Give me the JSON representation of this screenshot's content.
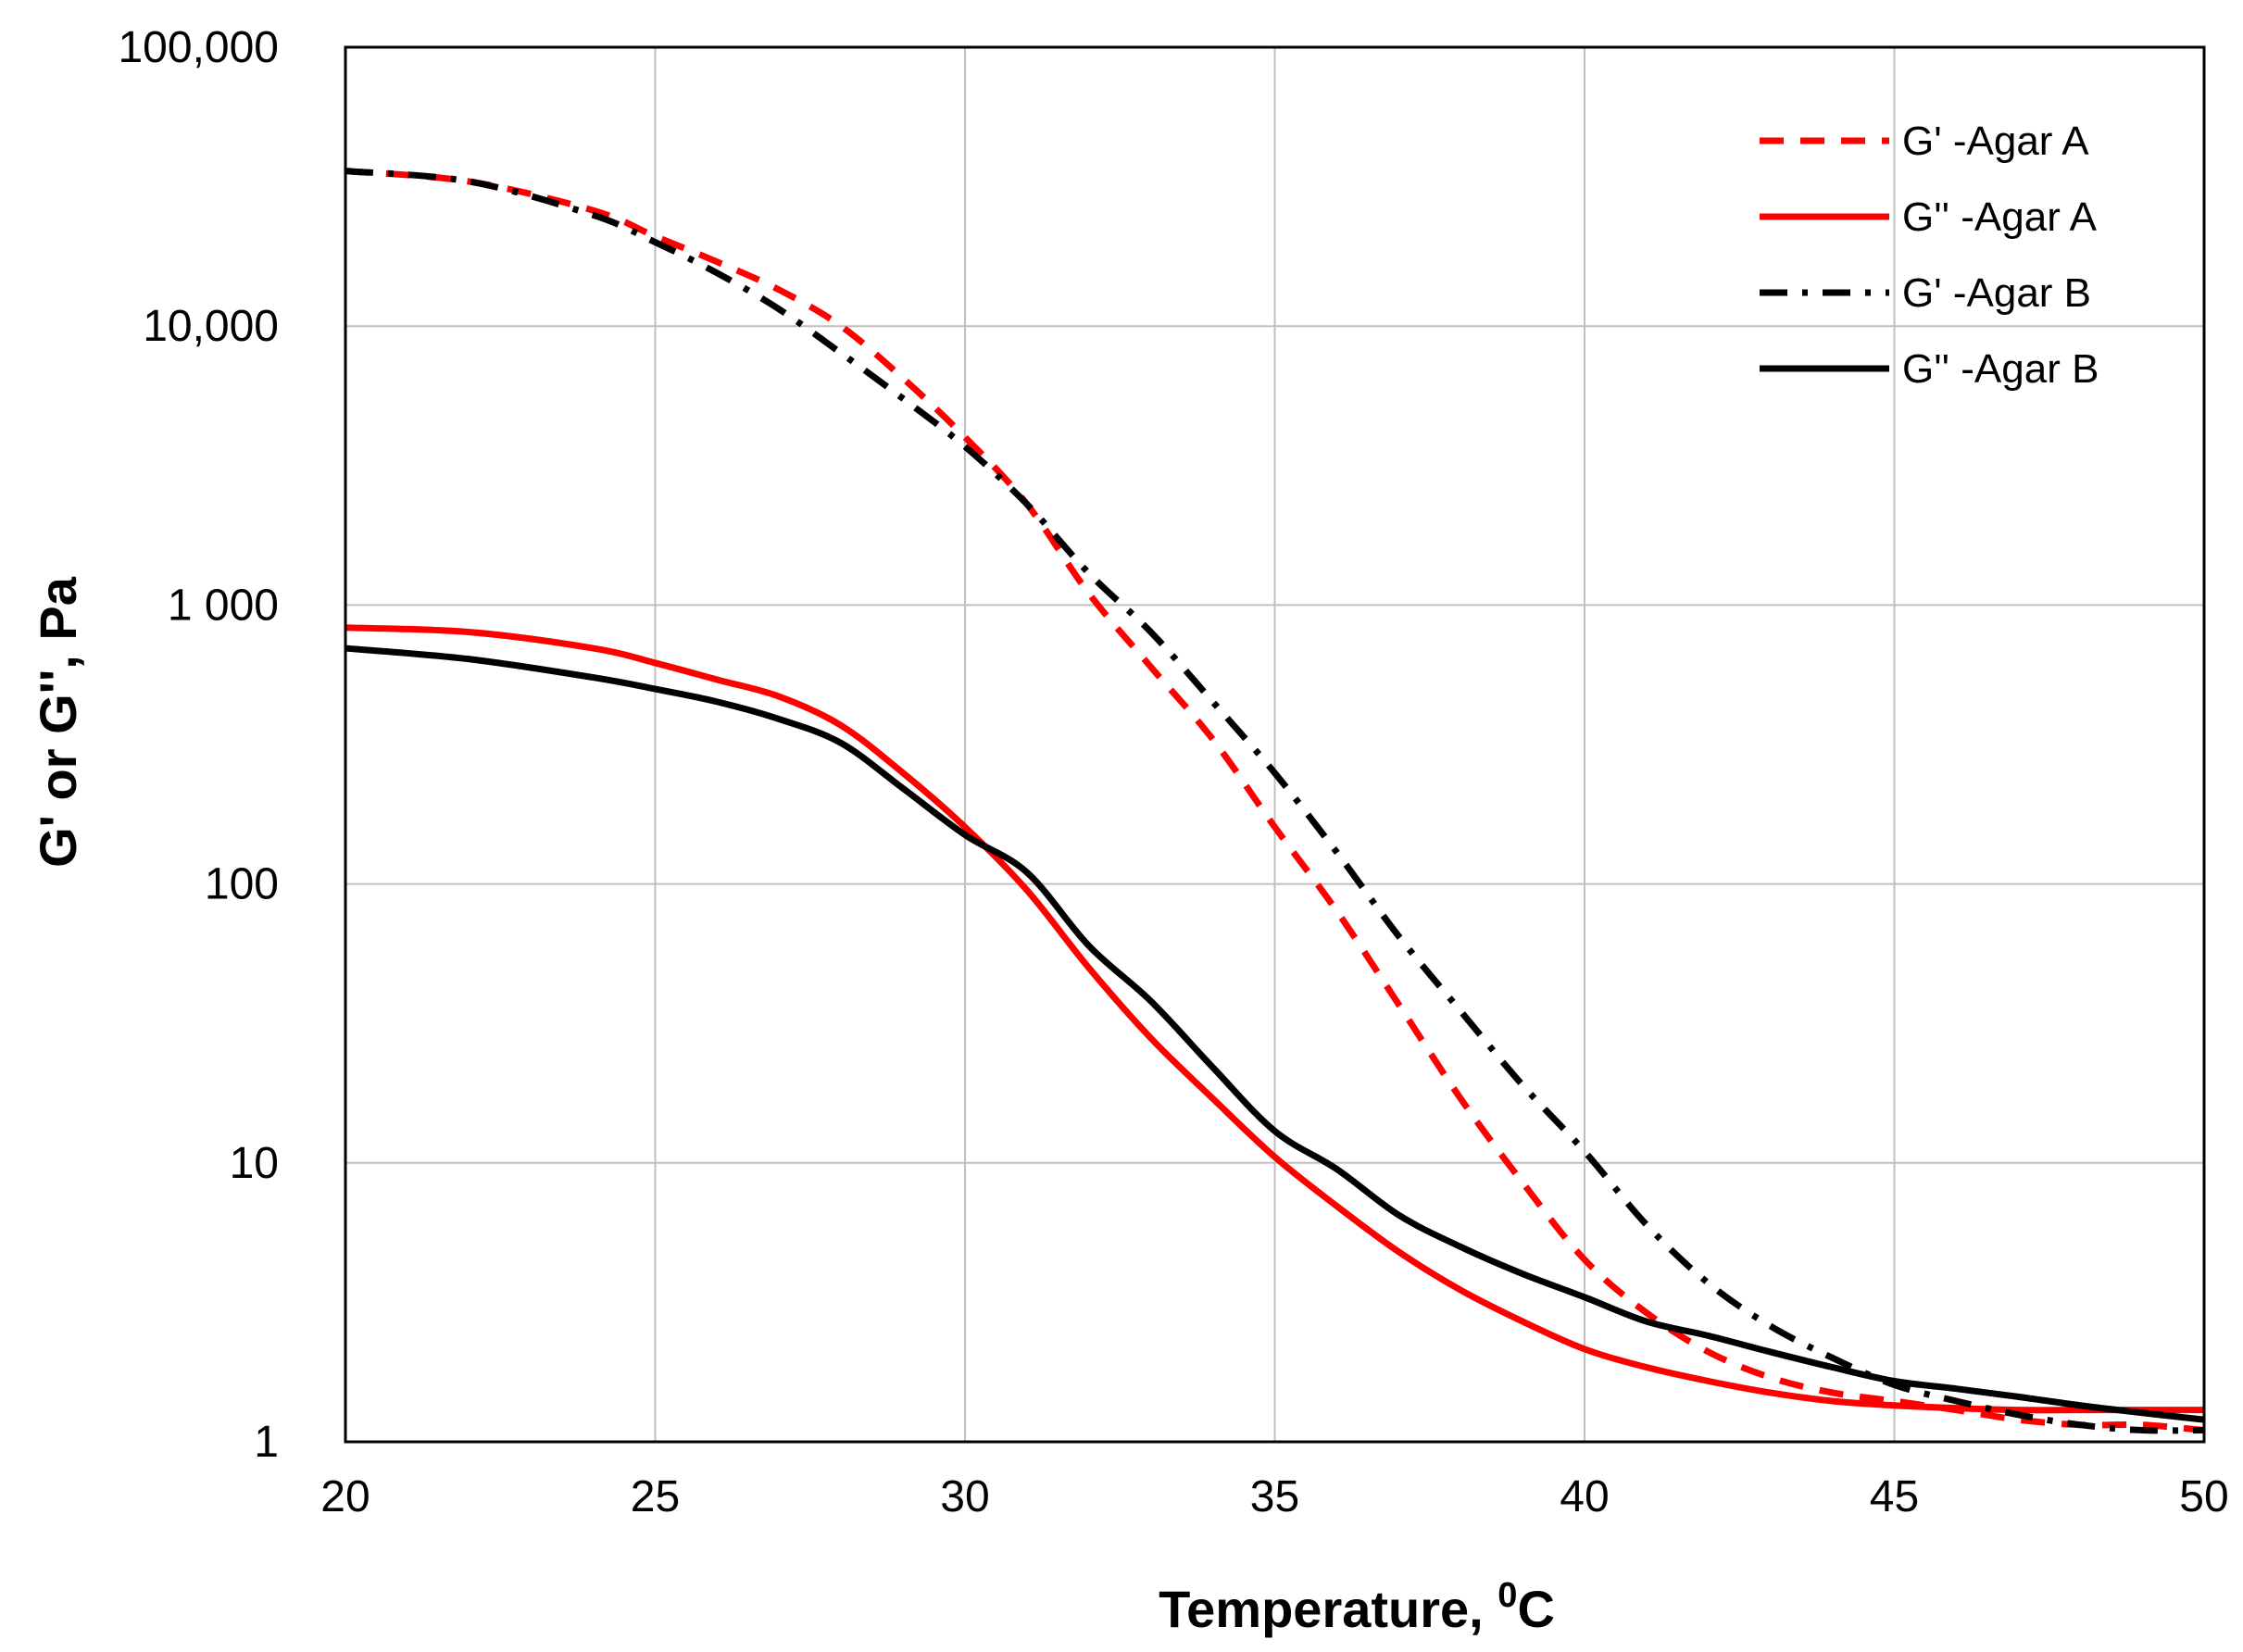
{
  "chart_data": {
    "type": "line",
    "title": "",
    "xlabel": "Temperature, ",
    "xlabel_superscript": "0",
    "xlabel_suffix": "C",
    "ylabel": "G' or  G'', Pa",
    "xlim": [
      20,
      50
    ],
    "ylim": [
      1,
      100000
    ],
    "yscale": "log",
    "grid": true,
    "legend_position": "top-right",
    "x_ticks": [
      20,
      25,
      30,
      35,
      40,
      45,
      50
    ],
    "x_tick_labels": [
      "20",
      "25",
      "30",
      "35",
      "40",
      "45",
      "50"
    ],
    "y_ticks": [
      1,
      10,
      100,
      1000,
      10000,
      100000
    ],
    "y_tick_labels": [
      "1",
      "10",
      "100",
      "1 000",
      "10,000",
      "100,000"
    ],
    "series": [
      {
        "name": "G' -Agar A",
        "color": "#ff0000",
        "style": "dashed",
        "x": [
          20,
          22,
          24,
          25,
          26,
          27,
          28,
          29,
          30,
          31,
          32,
          33,
          34,
          35,
          36,
          37,
          38,
          39,
          40,
          41,
          42,
          43,
          44,
          45,
          46,
          47,
          48,
          49,
          50
        ],
        "y": [
          36000,
          33000,
          26000,
          21000,
          17000,
          13500,
          10000,
          6500,
          4000,
          2300,
          1100,
          600,
          330,
          160,
          80,
          37,
          17,
          8.5,
          4.5,
          2.9,
          2.1,
          1.7,
          1.5,
          1.4,
          1.3,
          1.2,
          1.15,
          1.15,
          1.1
        ]
      },
      {
        "name": "G'' -Agar A",
        "color": "#ff0000",
        "style": "solid",
        "x": [
          20,
          22,
          24,
          25,
          26,
          27,
          28,
          29,
          30,
          31,
          32,
          33,
          34,
          35,
          36,
          37,
          38,
          39,
          40,
          41,
          42,
          43,
          44,
          45,
          46,
          47,
          48,
          49,
          50
        ],
        "y": [
          830,
          800,
          700,
          620,
          540,
          470,
          370,
          250,
          160,
          95,
          50,
          28,
          17,
          10.5,
          7,
          4.8,
          3.5,
          2.7,
          2.15,
          1.85,
          1.65,
          1.5,
          1.4,
          1.35,
          1.32,
          1.3,
          1.3,
          1.3,
          1.3
        ]
      },
      {
        "name": "G' -Agar B",
        "color": "#000000",
        "style": "dashdot",
        "x": [
          20,
          22,
          24,
          25,
          26,
          27,
          28,
          29,
          30,
          31,
          32,
          33,
          34,
          35,
          36,
          37,
          38,
          39,
          40,
          41,
          42,
          43,
          44,
          45,
          46,
          47,
          48,
          49,
          50
        ],
        "y": [
          36000,
          33000,
          25000,
          20000,
          15500,
          11500,
          8000,
          5500,
          3700,
          2300,
          1300,
          800,
          450,
          250,
          130,
          65,
          35,
          19,
          11,
          6,
          3.7,
          2.6,
          2,
          1.6,
          1.4,
          1.25,
          1.15,
          1.1,
          1.1
        ]
      },
      {
        "name": "G'' -Agar B",
        "color": "#000000",
        "style": "solid",
        "x": [
          20,
          22,
          24,
          25,
          26,
          27,
          28,
          29,
          30,
          31,
          32,
          33,
          34,
          35,
          36,
          37,
          38,
          39,
          40,
          41,
          42,
          43,
          44,
          45,
          46,
          47,
          48,
          49,
          50
        ],
        "y": [
          700,
          640,
          550,
          500,
          450,
          390,
          320,
          220,
          150,
          110,
          60,
          38,
          22,
          13,
          9.5,
          6.5,
          5,
          4,
          3.3,
          2.7,
          2.4,
          2.1,
          1.85,
          1.65,
          1.55,
          1.45,
          1.35,
          1.27,
          1.2
        ]
      }
    ]
  }
}
